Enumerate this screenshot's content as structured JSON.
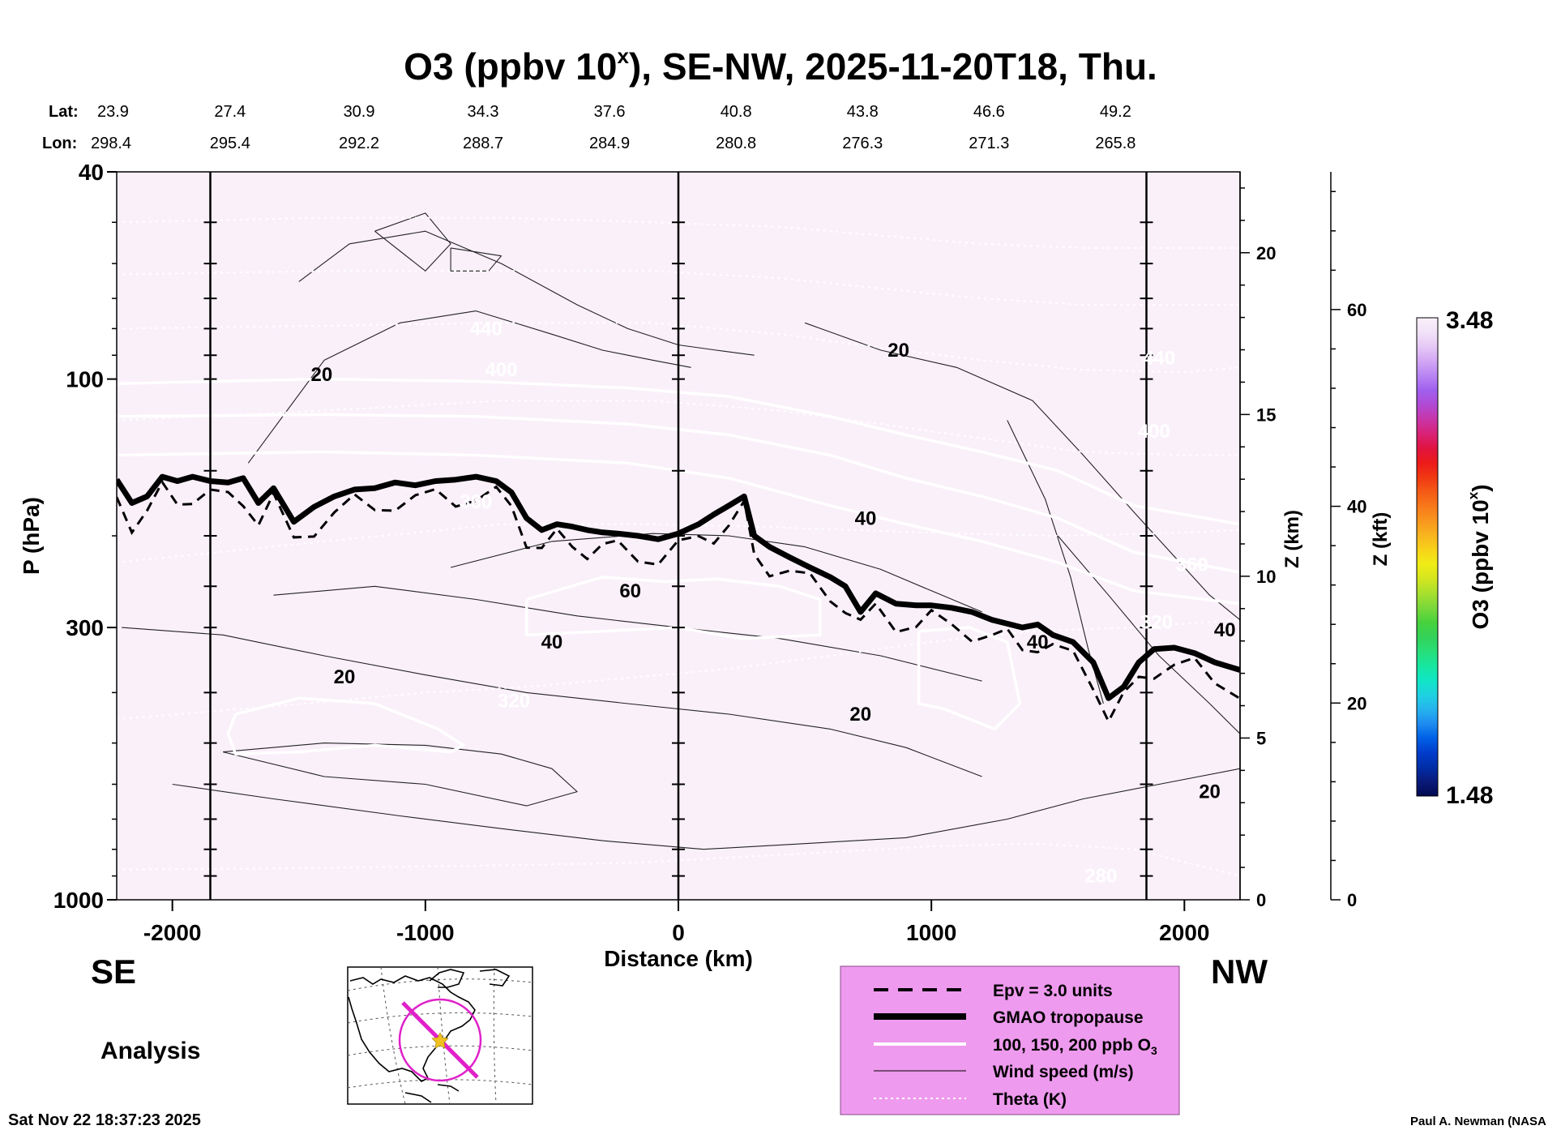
{
  "chart_data": {
    "type": "heatmap",
    "title_main": "O3 (ppbv 10",
    "title_sup": "x",
    "title_rest": "), SE-NW, 2025-11-20T18, Thu.",
    "lat_label": "Lat:",
    "lon_label": "Lon:",
    "lat_values": [
      "23.9",
      "27.4",
      "30.9",
      "34.3",
      "37.6",
      "40.8",
      "43.8",
      "46.6",
      "49.2"
    ],
    "lon_values": [
      "298.4",
      "295.4",
      "292.2",
      "288.7",
      "284.9",
      "280.8",
      "276.3",
      "271.3",
      "265.8"
    ],
    "xlabel": "Distance (km)",
    "ylabel": "P (hPa)",
    "zlabel_km": "Z (km)",
    "zlabel_kft": "Z (kft)",
    "x_ticks": [
      -2000,
      -1000,
      0,
      1000,
      2000
    ],
    "x_tick_labels": [
      "-2000",
      "-1000",
      "0",
      "1000",
      "2000"
    ],
    "xlim": [
      -2220,
      2220
    ],
    "y_ticks": [
      40,
      100,
      300,
      1000
    ],
    "y_tick_labels": [
      "40",
      "100",
      "300",
      "1000"
    ],
    "ylim": [
      1000,
      40
    ],
    "y_scale": "log",
    "z_km_ticks": [
      0,
      5,
      10,
      15,
      20
    ],
    "z_km_labels": [
      "0",
      "5",
      "10",
      "15",
      "20"
    ],
    "z_kft_ticks": [
      0,
      20,
      40,
      60
    ],
    "z_kft_labels": [
      "0",
      "20",
      "40",
      "60"
    ],
    "vertical_lines_km": [
      -1850,
      0,
      1850
    ],
    "colorbar": {
      "label_main": "O3 (ppbv 10",
      "label_sup": "x",
      "label_rest": ")",
      "min_label": "1.48",
      "max_label": "3.48",
      "min": 1.48,
      "max": 3.48,
      "colors": [
        "#000a50",
        "#0a1a7a",
        "#002ea8",
        "#003ccc",
        "#0060e6",
        "#1e8cf0",
        "#26b4ee",
        "#1ed2e0",
        "#10e6c4",
        "#18e6a0",
        "#28de78",
        "#34d258",
        "#48d23c",
        "#7ad83a",
        "#a8e02e",
        "#d4e61e",
        "#f0ec16",
        "#f8d21a",
        "#f8b41e",
        "#f8961e",
        "#f8781a",
        "#f45a16",
        "#f03812",
        "#ec1a1a",
        "#e01440",
        "#d82276",
        "#c836a8",
        "#b04ad4",
        "#a060ee",
        "#b884f2",
        "#d2a6f4",
        "#e6c8f6",
        "#f2e2f8",
        "#faf0fa"
      ]
    },
    "tropopause": {
      "x": [
        -2220,
        -2160,
        -2100,
        -2040,
        -1980,
        -1920,
        -1850,
        -1780,
        -1720,
        -1660,
        -1600,
        -1520,
        -1440,
        -1360,
        -1280,
        -1200,
        -1120,
        -1040,
        -960,
        -880,
        -800,
        -720,
        -660,
        -600,
        -540,
        -480,
        -420,
        -360,
        -300,
        -240,
        -160,
        -80,
        0,
        80,
        140,
        200,
        260,
        300,
        360,
        440,
        520,
        600,
        660,
        720,
        780,
        860,
        940,
        1000,
        1080,
        1160,
        1240,
        1300,
        1360,
        1420,
        1480,
        1560,
        1640,
        1700,
        1760,
        1820,
        1880,
        1960,
        2040,
        2120,
        2220
      ],
      "p": [
        156,
        173,
        168,
        154,
        157,
        154,
        157,
        158,
        155,
        173,
        162,
        188,
        176,
        168,
        163,
        162,
        158,
        160,
        157,
        156,
        154,
        157,
        165,
        185,
        195,
        190,
        192,
        195,
        197,
        198,
        200,
        203,
        198,
        190,
        182,
        175,
        168,
        200,
        210,
        220,
        230,
        240,
        250,
        280,
        258,
        270,
        272,
        272,
        275,
        280,
        290,
        295,
        300,
        296,
        310,
        320,
        350,
        410,
        390,
        350,
        330,
        328,
        336,
        350,
        362
      ]
    },
    "o3_ppb_contours": [
      {
        "value": 100,
        "x": [
          -2220,
          -1400,
          -800,
          -200,
          200,
          600,
          900,
          1200,
          1500,
          1800,
          2220
        ],
        "p": [
          140,
          138,
          140,
          145,
          155,
          175,
          190,
          205,
          225,
          255,
          270
        ]
      },
      {
        "value": 150,
        "x": [
          -2220,
          -1400,
          -800,
          -200,
          200,
          600,
          900,
          1200,
          1500,
          1800,
          2220
        ],
        "p": [
          118,
          117,
          118,
          122,
          128,
          140,
          155,
          168,
          185,
          215,
          235
        ]
      },
      {
        "value": 200,
        "x": [
          -2220,
          -1400,
          -800,
          -200,
          200,
          600,
          900,
          1200,
          1500,
          1800,
          2220
        ],
        "p": [
          102,
          100,
          101,
          104,
          108,
          118,
          128,
          138,
          150,
          175,
          190
        ]
      }
    ],
    "white_island_contours": [
      {
        "x": [
          -1750,
          -1500,
          -1200,
          -950,
          -850,
          -900,
          -1200,
          -1500,
          -1750,
          -1780,
          -1750
        ],
        "p": [
          440,
          410,
          420,
          470,
          505,
          520,
          505,
          520,
          525,
          480,
          440
        ]
      },
      {
        "x": [
          -600,
          -300,
          -50,
          150,
          400,
          560,
          560,
          250,
          0,
          -300,
          -600,
          -600
        ],
        "p": [
          265,
          240,
          245,
          242,
          250,
          265,
          310,
          315,
          300,
          305,
          310,
          265
        ]
      },
      {
        "x": [
          950,
          1150,
          1300,
          1350,
          1250,
          1050,
          950,
          950
        ],
        "p": [
          305,
          300,
          320,
          420,
          470,
          430,
          420,
          305
        ]
      }
    ],
    "wind_contours": [
      {
        "x": [
          -1700,
          -1400,
          -1100,
          -800,
          -500,
          -300,
          -200,
          -100,
          50
        ],
        "p": [
          145,
          92,
          78,
          74,
          82,
          88,
          90,
          92,
          95
        ]
      },
      {
        "x": [
          -1500,
          -1300,
          -1000,
          -700,
          -400,
          -200,
          0,
          150,
          300
        ],
        "p": [
          65,
          55,
          52,
          60,
          72,
          80,
          86,
          88,
          90
        ]
      },
      {
        "x": [
          -1200,
          -1000,
          -900,
          -1000,
          -1200
        ],
        "p": [
          52,
          48,
          55,
          62,
          52
        ]
      },
      {
        "x": [
          -900,
          -700,
          -750,
          -900,
          -900
        ],
        "p": [
          56,
          58,
          62,
          62,
          56
        ]
      },
      {
        "x": [
          500,
          800,
          1100,
          1400,
          1600,
          1800,
          2100,
          2220
        ],
        "p": [
          78,
          88,
          95,
          110,
          140,
          180,
          260,
          290
        ]
      },
      {
        "x": [
          -900,
          -500,
          -100,
          200,
          500,
          800,
          1000,
          1200
        ],
        "p": [
          230,
          205,
          198,
          200,
          210,
          232,
          255,
          280
        ]
      },
      {
        "x": [
          -1600,
          -1200,
          -800,
          -400,
          0,
          400,
          800,
          1200
        ],
        "p": [
          260,
          250,
          265,
          285,
          300,
          315,
          340,
          380
        ]
      },
      {
        "x": [
          -2200,
          -1800,
          -1400,
          -1000,
          -600,
          -200,
          200,
          600,
          900,
          1200
        ],
        "p": [
          300,
          310,
          340,
          370,
          400,
          420,
          440,
          470,
          510,
          580
        ]
      },
      {
        "x": [
          -1800,
          -1400,
          -1000,
          -700,
          -500,
          -400,
          -600,
          -1000,
          -1400,
          -1800
        ],
        "p": [
          520,
          500,
          505,
          525,
          560,
          620,
          660,
          600,
          580,
          520
        ]
      },
      {
        "x": [
          -2000,
          -1600,
          -1100,
          -700,
          -300,
          100,
          500,
          900,
          1300,
          1600,
          1900,
          2220
        ],
        "p": [
          600,
          640,
          690,
          730,
          770,
          800,
          780,
          760,
          700,
          640,
          600,
          560
        ]
      },
      {
        "x": [
          1500,
          1700,
          1900,
          2100,
          2220
        ],
        "p": [
          200,
          260,
          340,
          420,
          480
        ]
      },
      {
        "x": [
          1300,
          1450,
          1550,
          1620,
          1680
        ],
        "p": [
          120,
          170,
          240,
          330,
          420
        ]
      }
    ],
    "theta_contours": [
      {
        "value": 280,
        "x": [
          -2220,
          -1500,
          -800,
          -200,
          200,
          600,
          1000,
          1400,
          1800,
          2220
        ],
        "p": [
          875,
          870,
          860,
          850,
          830,
          810,
          790,
          780,
          800,
          900
        ]
      },
      {
        "value": 320,
        "x": [
          -2220,
          -1600,
          -1000,
          -600,
          -200,
          200,
          600,
          1000,
          1400,
          1800,
          2220
        ],
        "p": [
          450,
          425,
          400,
          390,
          375,
          360,
          340,
          320,
          305,
          300,
          290
        ]
      },
      {
        "value": 360,
        "x": [
          -2220,
          -1400,
          -700,
          -100,
          300,
          700,
          1100,
          1500,
          1900,
          2220
        ],
        "p": [
          225,
          205,
          190,
          190,
          192,
          195,
          198,
          200,
          198,
          195
        ]
      },
      {
        "value": 400,
        "x": [
          -2220,
          -1400,
          -700,
          -100,
          400,
          800,
          1200,
          1600,
          2000,
          2220
        ],
        "p": [
          120,
          115,
          110,
          110,
          115,
          122,
          130,
          138,
          140,
          140
        ]
      },
      {
        "value": 440,
        "x": [
          -2220,
          -1400,
          -700,
          -100,
          400,
          800,
          1200,
          1600,
          2000,
          2220
        ],
        "p": [
          80,
          79,
          78,
          78,
          82,
          87,
          92,
          96,
          97,
          95
        ]
      },
      {
        "value": 480,
        "x": [
          -2220,
          -1400,
          -700,
          -100,
          400,
          800,
          1200,
          1600,
          2000,
          2220
        ],
        "p": [
          63,
          62,
          62,
          62,
          64,
          67,
          70,
          72,
          72,
          72
        ]
      },
      {
        "value": 520,
        "x": [
          -2220,
          -1400,
          -700,
          -100,
          400,
          800,
          1200,
          1600,
          2000,
          2220
        ],
        "p": [
          50,
          49,
          49,
          50,
          51,
          53,
          55,
          56,
          56,
          56
        ]
      }
    ],
    "contour_labels": [
      {
        "text": "440",
        "x": -760,
        "p": 80,
        "color": "#ffffff"
      },
      {
        "text": "400",
        "x": -700,
        "p": 96,
        "color": "#ffffff"
      },
      {
        "text": "360",
        "x": -800,
        "p": 172,
        "color": "#ffffff"
      },
      {
        "text": "320",
        "x": -650,
        "p": 415,
        "color": "#ffffff"
      },
      {
        "text": "280",
        "x": 1670,
        "p": 900,
        "color": "#ffffff"
      },
      {
        "text": "440",
        "x": 1900,
        "p": 91,
        "color": "#ffffff"
      },
      {
        "text": "400",
        "x": 1880,
        "p": 126,
        "color": "#ffffff"
      },
      {
        "text": "360",
        "x": 2030,
        "p": 227,
        "color": "#ffffff"
      },
      {
        "text": "320",
        "x": 1890,
        "p": 293,
        "color": "#ffffff"
      },
      {
        "text": "20",
        "x": -1410,
        "p": 98,
        "color": "#000000"
      },
      {
        "text": "20",
        "x": 870,
        "p": 88,
        "color": "#000000"
      },
      {
        "text": "40",
        "x": 740,
        "p": 185,
        "color": "#000000"
      },
      {
        "text": "60",
        "x": -190,
        "p": 255,
        "color": "#000000"
      },
      {
        "text": "40",
        "x": -500,
        "p": 320,
        "color": "#000000"
      },
      {
        "text": "20",
        "x": -1320,
        "p": 373,
        "color": "#000000"
      },
      {
        "text": "20",
        "x": 720,
        "p": 440,
        "color": "#000000"
      },
      {
        "text": "40",
        "x": 1420,
        "p": 320,
        "color": "#000000"
      },
      {
        "text": "40",
        "x": 2160,
        "p": 303,
        "color": "#000000"
      },
      {
        "text": "20",
        "x": 2100,
        "p": 620,
        "color": "#000000"
      }
    ],
    "legend": {
      "placement": "bottom-right",
      "background": "#ee9aee",
      "items": [
        {
          "label": "Epv = 3.0 units",
          "style": "dashed"
        },
        {
          "label": "GMAO tropopause",
          "style": "thick"
        },
        {
          "label_main": "100, 150, 200 ppb O",
          "label_sub": "3",
          "style": "white"
        },
        {
          "label": "Wind speed (m/s)",
          "style": "thin"
        },
        {
          "label": "Theta (K)",
          "style": "dotted"
        }
      ]
    },
    "direction_left": "SE",
    "direction_right": "NW",
    "analysis_label": "Analysis",
    "map_inset": {
      "icon": "north-america-map-icon",
      "line_color": "#e020c8",
      "marker_color": "#f0c020"
    }
  },
  "footer": {
    "timestamp": "Sat Nov 22 18:37:23 2025",
    "credit": "Paul A. Newman (NASA"
  }
}
